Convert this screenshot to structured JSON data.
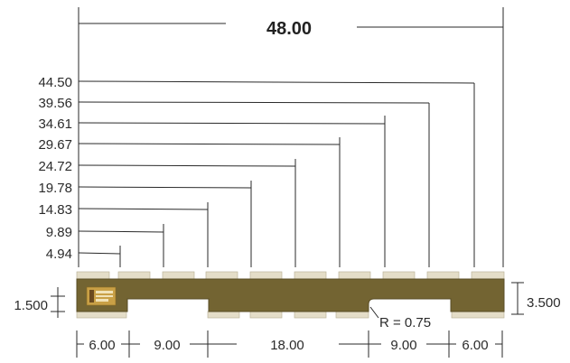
{
  "drawing": {
    "overall_length": "48.00",
    "tab_positions": [
      "4.94",
      "9.89",
      "14.83",
      "19.78",
      "24.72",
      "29.67",
      "34.61",
      "39.56",
      "44.50"
    ],
    "height_small": "1.500",
    "height_large": "3.500",
    "radius": "R = 0.75",
    "bottom_segments": [
      "6.00",
      "9.00",
      "18.00",
      "9.00",
      "6.00"
    ]
  },
  "colors": {
    "board": "#736432",
    "tab": "#e4ddc8",
    "line": "#2a2a2a",
    "label_patch": "#c9a046"
  }
}
